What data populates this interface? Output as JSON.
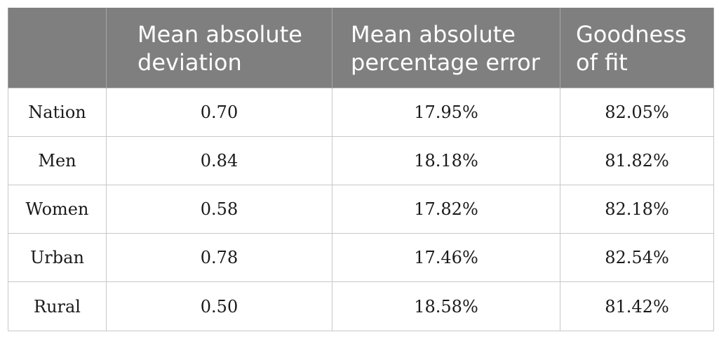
{
  "table": {
    "headers": {
      "region": "",
      "mad": "Mean absolute deviation",
      "mape": "Mean absolute percentage error",
      "gof": "Goodness of fit"
    },
    "rows": [
      {
        "region": "Nation",
        "mad": "0.70",
        "mape": "17.95%",
        "gof": "82.05%"
      },
      {
        "region": "Men",
        "mad": "0.84",
        "mape": "18.18%",
        "gof": "81.82%"
      },
      {
        "region": "Women",
        "mad": "0.58",
        "mape": "17.82%",
        "gof": "82.18%"
      },
      {
        "region": "Urban",
        "mad": "0.78",
        "mape": "17.46%",
        "gof": "82.54%"
      },
      {
        "region": "Rural",
        "mad": "0.50",
        "mape": "18.58%",
        "gof": "81.42%"
      }
    ]
  }
}
